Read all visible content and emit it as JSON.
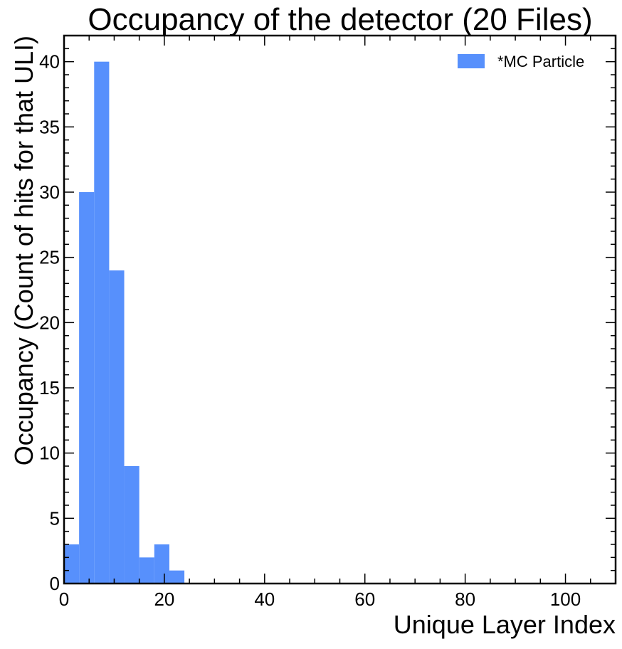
{
  "chart_data": {
    "type": "bar",
    "title": "Occupancy of the detector (20 Files)",
    "xlabel": "Unique Layer Index",
    "ylabel": "Occupancy (Count of hits for that ULI)",
    "xlim": [
      0,
      110
    ],
    "ylim": [
      0,
      42
    ],
    "x_ticks": [
      0,
      20,
      40,
      60,
      80,
      100
    ],
    "y_ticks": [
      0,
      5,
      10,
      15,
      20,
      25,
      30,
      35,
      40
    ],
    "x_tick_labels": [
      "0",
      "20",
      "40",
      "60",
      "80",
      "100"
    ],
    "y_tick_labels": [
      "0",
      "5",
      "10",
      "15",
      "20",
      "25",
      "30",
      "35",
      "40"
    ],
    "bin_edges": [
      0,
      3,
      6,
      9,
      12,
      15,
      18,
      21,
      24
    ],
    "series": [
      {
        "name": "*MC Particle",
        "color": "#5790fc",
        "values": [
          3,
          30,
          40,
          24,
          9,
          2,
          3,
          1
        ]
      }
    ],
    "grid": false,
    "legend_position": "top-right"
  }
}
